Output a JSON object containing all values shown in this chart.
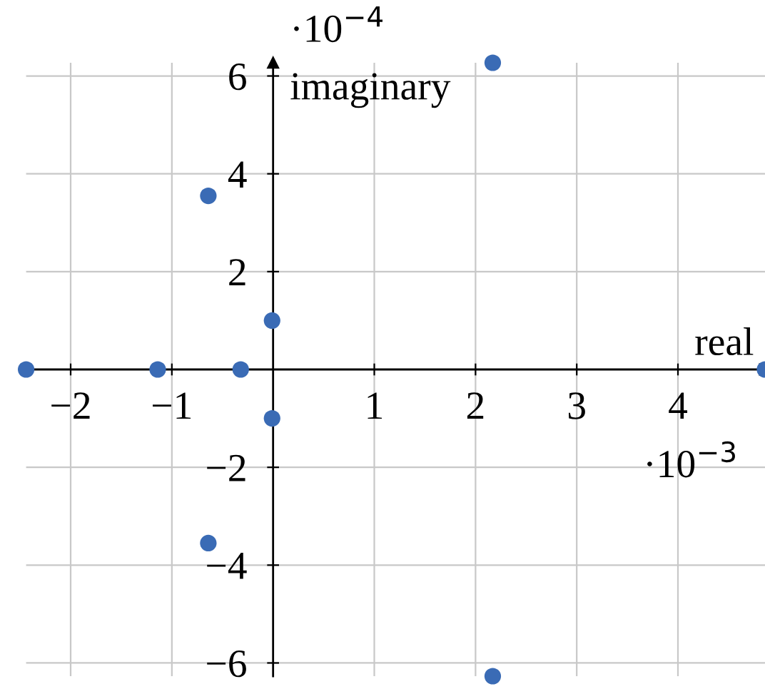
{
  "chart_data": {
    "type": "scatter",
    "xlabel": "real",
    "ylabel": "imaginary",
    "x": [
      -2.44,
      -1.14,
      -0.32,
      -0.64,
      -0.64,
      -0.01,
      -0.01,
      2.17,
      2.17,
      4.86
    ],
    "values": [
      0,
      0,
      0,
      3.55,
      -3.55,
      1.0,
      -1.0,
      6.27,
      -6.27,
      0
    ],
    "color": "#3a6bb5",
    "marker": "circle",
    "xlim": [
      -2.44,
      4.86
    ],
    "ylim": [
      -6.27,
      6.27
    ],
    "xticks": [
      -2,
      -1,
      1,
      2,
      3,
      4
    ],
    "yticks": [
      -6,
      -4,
      -2,
      2,
      4,
      6
    ],
    "grid": true,
    "annotations": [
      "·10$^{−3}$",
      "·10$^{−4}$"
    ]
  }
}
